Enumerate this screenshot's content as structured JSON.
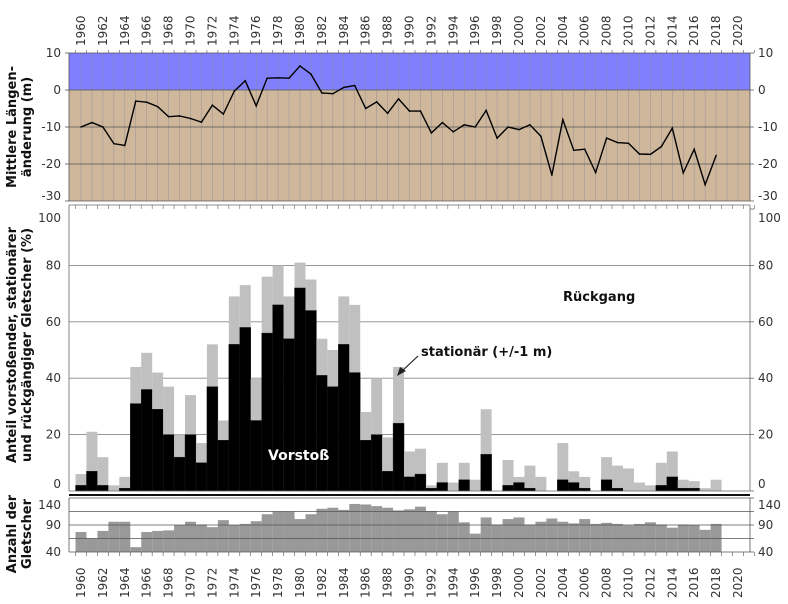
{
  "chart_data": [
    {
      "type": "line",
      "ylabel_lines": [
        "Mittlere Längen-",
        "änderung (m)"
      ],
      "ylim": [
        -30,
        10
      ],
      "yticks": [
        10,
        0,
        -10,
        -20,
        -30
      ],
      "grid": true,
      "colors": {
        "positive_zone": "#8080ff",
        "negative_zone": "#cfb79c",
        "line": "#000000"
      },
      "x": [
        1960,
        1961,
        1962,
        1963,
        1964,
        1965,
        1966,
        1967,
        1968,
        1969,
        1970,
        1971,
        1972,
        1973,
        1974,
        1975,
        1976,
        1977,
        1978,
        1979,
        1980,
        1981,
        1982,
        1983,
        1984,
        1985,
        1986,
        1987,
        1988,
        1989,
        1990,
        1991,
        1992,
        1993,
        1994,
        1995,
        1996,
        1997,
        1998,
        1999,
        2000,
        2001,
        2002,
        2003,
        2004,
        2005,
        2006,
        2007,
        2008,
        2009,
        2010,
        2011,
        2012,
        2013,
        2014,
        2015,
        2016,
        2017,
        2018
      ],
      "values": [
        -10,
        -8.8,
        -10,
        -14.5,
        -15,
        -3,
        -3.3,
        -4.5,
        -7.2,
        -7,
        -7.7,
        -8.7,
        -4.1,
        -6.5,
        -0.3,
        2.5,
        -4.3,
        3.2,
        3.3,
        3.2,
        6.5,
        4.3,
        -0.8,
        -1,
        0.7,
        1.2,
        -5,
        -3.2,
        -6.3,
        -2.4,
        -5.7,
        -5.7,
        -11.6,
        -8.8,
        -11.3,
        -9.4,
        -10,
        -5.5,
        -13,
        -10,
        -10.7,
        -9.4,
        -12.5,
        -23,
        -8,
        -16.3,
        -16,
        -22.3,
        -13,
        -14.2,
        -14.4,
        -17.3,
        -17.4,
        -15.3,
        -10.3,
        -22.4,
        -16,
        -25.6,
        -17.7
      ]
    },
    {
      "type": "bar",
      "stacked": true,
      "ylabel_lines": [
        "Anteil vorstoßender, stationärer",
        "und rückgängiger Gletscher (%)"
      ],
      "ylim": [
        0,
        100
      ],
      "yticks": [
        0,
        20,
        40,
        60,
        80,
        100
      ],
      "grid": true,
      "annotations": {
        "retreat": "Rückgang",
        "stationary": "stationär (+/-1 m)",
        "advance": "Vorstoß"
      },
      "colors": {
        "advance": "#000000",
        "stationary": "#c0c0c0",
        "retreat": "#ffffff"
      },
      "series": [
        {
          "name": "Vorstoß",
          "values": [
            2,
            7,
            2,
            0,
            1,
            31,
            36,
            29,
            20,
            12,
            20,
            10,
            37,
            18,
            52,
            58,
            25,
            56,
            66,
            54,
            72,
            64,
            41,
            37,
            52,
            42,
            18,
            20,
            7,
            24,
            5,
            6,
            1,
            3,
            0,
            4,
            0,
            13,
            0,
            2,
            3,
            1,
            0,
            0,
            4,
            3,
            1,
            0,
            4,
            1,
            0,
            0,
            0,
            2,
            5,
            1,
            1,
            0,
            0
          ]
        },
        {
          "name": "stationär (+/-1 m)",
          "values": [
            4,
            14,
            10,
            2,
            4,
            13,
            13,
            13,
            17,
            8,
            14,
            7,
            15,
            7,
            17,
            15,
            15,
            20,
            14,
            15,
            9,
            11,
            13,
            13,
            17,
            24,
            10,
            20,
            12,
            20,
            9,
            9,
            1,
            7,
            3,
            6,
            4,
            16,
            0,
            9,
            2,
            8,
            5,
            0,
            13,
            4,
            4,
            0,
            8,
            8,
            8,
            3,
            2,
            8,
            9,
            3,
            2.5,
            1,
            4
          ]
        }
      ]
    },
    {
      "type": "bar",
      "ylabel_lines": [
        "Anzahl der",
        "Gletscher"
      ],
      "ylim": [
        40,
        140
      ],
      "yticks": [
        40,
        90,
        140
      ],
      "grid": true,
      "color": "#999999",
      "values": [
        77,
        65,
        79,
        96,
        96,
        49,
        77,
        79,
        80,
        90,
        96,
        91,
        86,
        99,
        90,
        92,
        97,
        110,
        115,
        115,
        101,
        110,
        120,
        122,
        118,
        129,
        128,
        125,
        122,
        117,
        119,
        124,
        116,
        110,
        115,
        95,
        74,
        104,
        91,
        101,
        104,
        91,
        96,
        102,
        96,
        93,
        101,
        92,
        94,
        92,
        89,
        92,
        95,
        91,
        85,
        91,
        90,
        81,
        92
      ]
    }
  ],
  "x_axis": {
    "tick_labels": [
      "1960",
      "1962",
      "1964",
      "1966",
      "1968",
      "1970",
      "1972",
      "1974",
      "1976",
      "1978",
      "1980",
      "1982",
      "1984",
      "1986",
      "1988",
      "1990",
      "1992",
      "1994",
      "1996",
      "1998",
      "2000",
      "2002",
      "2004",
      "2006",
      "2008",
      "2010",
      "2012",
      "2014",
      "2016",
      "2018",
      "2020"
    ]
  }
}
